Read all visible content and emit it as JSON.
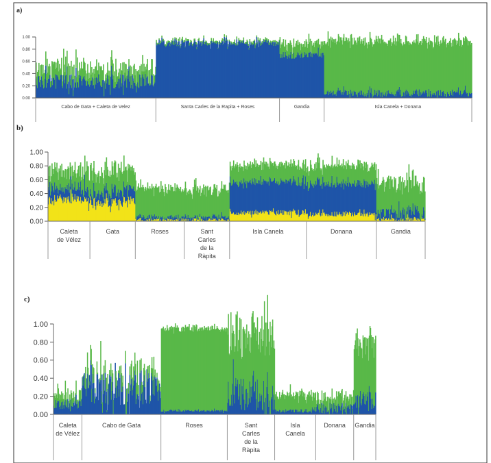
{
  "colors": {
    "red": "#e53227",
    "green": "#59b848",
    "blue": "#1f55a8",
    "yellow": "#f2e318"
  },
  "chart_data": [
    {
      "type": "bar",
      "panel": "a)",
      "ylim": [
        0,
        1
      ],
      "yticks": [
        "0.00",
        "0.20",
        "0.40",
        "0.60",
        "0.80",
        "1.00"
      ],
      "series": [
        "blue",
        "green",
        "red"
      ],
      "groups": [
        {
          "label": "Cabo de Gata + Caleta de Velez",
          "n": 175,
          "blue": 0.27,
          "green": 0.2,
          "spike": 0.12
        },
        {
          "label": "Santa Carles de la Rapita + Roses",
          "n": 180,
          "blue": 0.9,
          "green": 0.03,
          "spike": 0.05
        },
        {
          "label": "Gandia",
          "n": 65,
          "blue": 0.7,
          "green": 0.18,
          "spike": 0.06
        },
        {
          "label": "Isla Canela + Donana",
          "n": 215,
          "blue": 0.08,
          "green": 0.85,
          "spike": 0.06
        }
      ]
    },
    {
      "type": "bar",
      "panel": "b)",
      "ylim": [
        0,
        1
      ],
      "yticks": [
        "0.00",
        "0.20",
        "0.40",
        "0.60",
        "0.80",
        "1.00"
      ],
      "series": [
        "yellow",
        "blue",
        "green",
        "red"
      ],
      "groups": [
        {
          "label": "Caleta\nde Vélez",
          "n": 60,
          "yellow": 0.32,
          "blue": 0.16,
          "green": 0.27,
          "spike": 0.08
        },
        {
          "label": "Gata",
          "n": 65,
          "yellow": 0.28,
          "blue": 0.15,
          "green": 0.3,
          "spike": 0.08
        },
        {
          "label": "Roses",
          "n": 70,
          "yellow": 0.02,
          "blue": 0.04,
          "green": 0.42,
          "spike": 0.06
        },
        {
          "label": "Sant\nCarles\nde la\nRàpita",
          "n": 65,
          "yellow": 0.02,
          "blue": 0.04,
          "green": 0.4,
          "spike": 0.07
        },
        {
          "label": "Isla Canela",
          "n": 110,
          "yellow": 0.12,
          "blue": 0.44,
          "green": 0.25,
          "spike": 0.04
        },
        {
          "label": "Donana",
          "n": 100,
          "yellow": 0.1,
          "blue": 0.44,
          "green": 0.26,
          "spike": 0.04
        },
        {
          "label": "Gandia",
          "n": 70,
          "yellow": 0.03,
          "blue": 0.1,
          "green": 0.42,
          "spike": 0.08
        }
      ]
    },
    {
      "type": "bar",
      "panel": "c)",
      "ylim": [
        0,
        1
      ],
      "yticks": [
        "0.00",
        "0.20",
        "0.40",
        "0.60",
        "0.80",
        "1.00"
      ],
      "series": [
        "blue",
        "green",
        "red"
      ],
      "groups": [
        {
          "label": "Caleta\nde Vélez",
          "n": 45,
          "blue": 0.12,
          "green": 0.1,
          "spike": 0.06
        },
        {
          "label": "Cabo de Gata",
          "n": 125,
          "blue": 0.28,
          "green": 0.06,
          "spike": 0.18
        },
        {
          "label": "Roses",
          "n": 105,
          "blue": 0.04,
          "green": 0.91,
          "spike": 0.03
        },
        {
          "label": "Sant\nCarles\nde la\nRàpita",
          "n": 75,
          "blue": 0.2,
          "green": 0.7,
          "spike": 0.2
        },
        {
          "label": "Isla\nCanela",
          "n": 65,
          "blue": 0.04,
          "green": 0.18,
          "spike": 0.05
        },
        {
          "label": "Donana",
          "n": 60,
          "blue": 0.07,
          "green": 0.12,
          "spike": 0.06
        },
        {
          "label": "Gandia",
          "n": 35,
          "blue": 0.15,
          "green": 0.65,
          "spike": 0.1
        }
      ]
    }
  ]
}
